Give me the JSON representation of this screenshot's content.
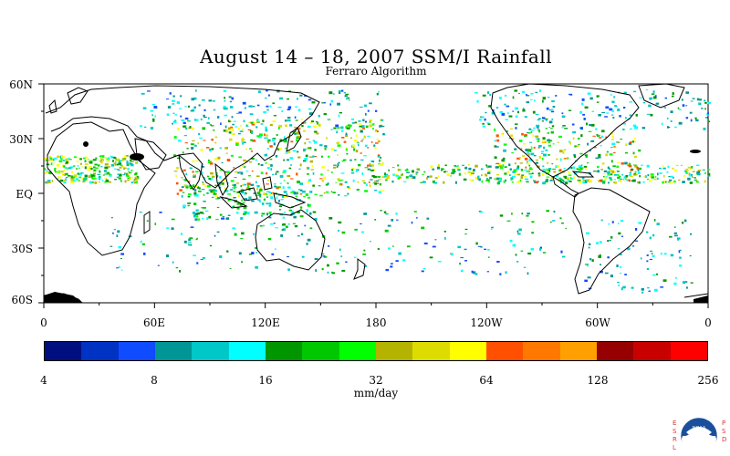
{
  "title": "August 14 – 18, 2007 SSM/I Rainfall",
  "subtitle": "Ferraro Algorithm",
  "map": {
    "lat_labels": [
      "60N",
      "30N",
      "EQ",
      "30S",
      "60S"
    ],
    "lon_labels": [
      "0",
      "60E",
      "120E",
      "180",
      "120W",
      "60W",
      "0"
    ]
  },
  "colorbar": {
    "colors": [
      "#000f7f",
      "#0032c4",
      "#0f4bff",
      "#009696",
      "#00c8c8",
      "#00ffff",
      "#009600",
      "#00c800",
      "#00ff00",
      "#b4b400",
      "#dcdc00",
      "#ffff00",
      "#ff5000",
      "#ff7800",
      "#ffa000",
      "#960000",
      "#c80000",
      "#ff0000"
    ],
    "tick_labels": [
      "4",
      "8",
      "16",
      "32",
      "64",
      "128",
      "256"
    ],
    "units": "mm/day"
  },
  "logo": {
    "left_letters": "ESRL",
    "right_letters": "PSD",
    "icon": "noaa-logo",
    "text": "NOAA"
  }
}
